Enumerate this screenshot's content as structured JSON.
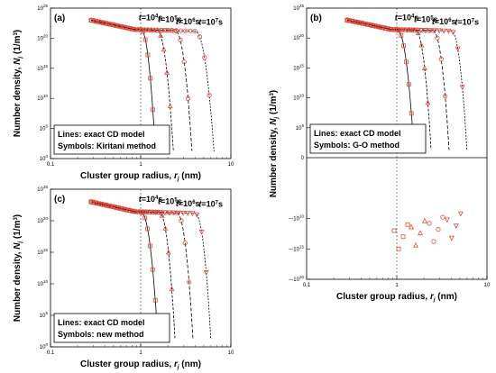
{
  "figure": {
    "time_labels": [
      {
        "t": "t",
        "eq": "=10",
        "exp": "4",
        "unit": "s"
      },
      {
        "t": "t",
        "eq": "=10",
        "exp": "5",
        "unit": "s"
      },
      {
        "t": "t",
        "eq": "=10",
        "exp": "6",
        "unit": "s"
      },
      {
        "t": "t",
        "eq": "=10",
        "exp": "7",
        "unit": "s"
      }
    ],
    "xtick_labels": [
      "0.1",
      "1",
      "10"
    ],
    "ytick_labels_pos": [
      "10",
      "10",
      "10",
      "10",
      "10",
      "10"
    ],
    "ytick_exps_pos": [
      "0",
      "5",
      "10",
      "15",
      "20",
      "25"
    ],
    "ytick_labels_b": [
      "10",
      "10",
      "10",
      "10",
      "10",
      "0",
      "-10",
      "-10",
      "-10"
    ],
    "ytick_exps_b": [
      "5",
      "10",
      "15",
      "20",
      "25",
      "",
      "10",
      "15",
      "20"
    ],
    "ytick_signs_b": [
      "",
      "",
      "",
      "",
      "",
      "",
      "−",
      "−",
      "−"
    ],
    "xlabel_main": "Cluster group radius, ",
    "xlabel_var": "r",
    "xlabel_sub": "j",
    "xlabel_unit": " (nm)",
    "ylabel_main": "Number density, ",
    "ylabel_var": "N",
    "ylabel_sub": "j",
    "ylabel_unit_a": " (1/m",
    "ylabel_unit_exp": "3",
    "ylabel_unit_b": ")"
  },
  "chart_data": [
    {
      "panel": "(a)",
      "type": "scatter",
      "xscale": "log",
      "yscale": "log",
      "xlim": [
        0.1,
        10
      ],
      "ylim": [
        1,
        1e+25
      ],
      "legend": {
        "position": "bottom-left",
        "lines": "Lines: exact CD model",
        "symbols": "Symbols: Kiritani method"
      },
      "series": [
        {
          "time": "10^4 s",
          "marker": "square",
          "peak_x": 1.0,
          "cutoff_x": 1.45
        },
        {
          "time": "10^5 s",
          "marker": "triangle",
          "peak_x": 1.5,
          "cutoff_x": 2.3
        },
        {
          "time": "10^6 s",
          "marker": "circle",
          "peak_x": 2.4,
          "cutoff_x": 3.7
        },
        {
          "time": "10^7 s",
          "marker": "circle",
          "peak_x": 4.0,
          "cutoff_x": 6.5
        }
      ]
    },
    {
      "panel": "(b)",
      "type": "scatter",
      "xscale": "log",
      "yscale": "symlog",
      "xlim": [
        0.1,
        10
      ],
      "ylim": [
        -1e+20,
        1e+25
      ],
      "legend": {
        "position": "bottom-left",
        "lines": "Lines: exact CD model",
        "symbols": "Symbols: G-O method"
      },
      "series": [
        {
          "time": "10^4 s",
          "marker": "square",
          "peak_x": 1.0,
          "cutoff_x": 1.55
        },
        {
          "time": "10^5 s",
          "marker": "triangle",
          "peak_x": 1.6,
          "cutoff_x": 2.4
        },
        {
          "time": "10^6 s",
          "marker": "circle",
          "peak_x": 2.5,
          "cutoff_x": 3.8
        },
        {
          "time": "10^7 s",
          "marker": "triangle-down",
          "peak_x": 4.0,
          "cutoff_x": 6.0
        }
      ]
    },
    {
      "panel": "(c)",
      "type": "scatter",
      "xscale": "log",
      "yscale": "log",
      "xlim": [
        0.1,
        10
      ],
      "ylim": [
        1,
        1e+25
      ],
      "legend": {
        "position": "bottom-left",
        "lines": "Lines: exact CD model",
        "symbols": "Symbols: new method"
      },
      "series": [
        {
          "time": "10^4 s",
          "marker": "square",
          "peak_x": 1.0,
          "cutoff_x": 1.55
        },
        {
          "time": "10^5 s",
          "marker": "triangle",
          "peak_x": 1.6,
          "cutoff_x": 2.4
        },
        {
          "time": "10^6 s",
          "marker": "circle",
          "peak_x": 2.5,
          "cutoff_x": 3.8
        },
        {
          "time": "10^7 s",
          "marker": "triangle-down",
          "peak_x": 4.0,
          "cutoff_x": 6.0
        }
      ]
    }
  ],
  "colors": {
    "marker": "#e04a3a",
    "line": "#000000",
    "ink": "#000000"
  }
}
